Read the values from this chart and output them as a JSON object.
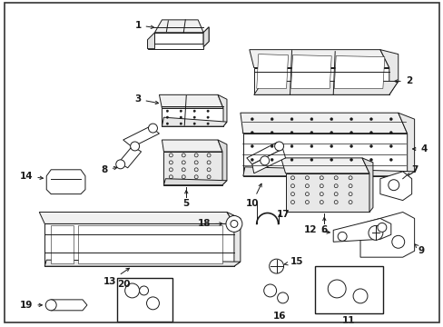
{
  "background_color": "#ffffff",
  "line_color": "#1a1a1a",
  "fig_width": 4.89,
  "fig_height": 3.6,
  "dpi": 100,
  "label_fontsize": 7.5,
  "border_lw": 1.2
}
